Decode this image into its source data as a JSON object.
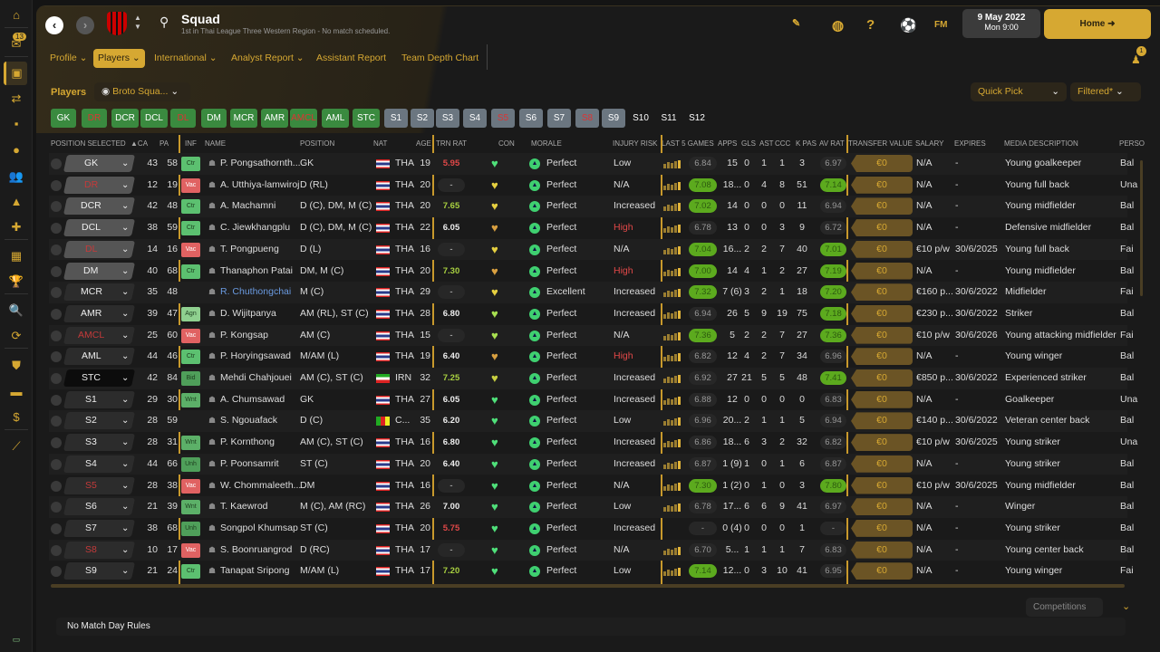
{
  "sidebar": {
    "inbox_count": "13",
    "bottom_icon": "keyboard"
  },
  "header": {
    "title": "Squad",
    "subtitle": "1st in Thai League Three Western Region - No match scheduled.",
    "date": "9 May 2022",
    "time": "Mon 9:00",
    "home": "Home",
    "fm": "FM",
    "notifications": "1"
  },
  "tabs": [
    "Profile",
    "Players",
    "International",
    "Analyst Report",
    "Assistant Report",
    "Team Depth Chart"
  ],
  "players_label": "Players",
  "view_select": "Broto Squa...",
  "quick_pick": "Quick Pick",
  "filtered": "Filtered*",
  "chips": [
    "GK",
    "DR",
    "DCR",
    "DCL",
    "DL",
    "DM",
    "MCR",
    "AMR",
    "AMCL",
    "AML",
    "STC",
    "S1",
    "S2",
    "S3",
    "S4",
    "S5",
    "S6",
    "S7",
    "S8",
    "S9",
    "S10",
    "S11",
    "S12"
  ],
  "columns": [
    "POSITION SELECTED",
    "▲CA",
    "PA",
    "INF",
    "NAME",
    "POSITION",
    "NAT",
    "AGE",
    "TRN RAT",
    "CON",
    "MORALE",
    "INJURY RISK",
    "LAST 5 GAMES",
    "APPS",
    "GLS",
    "AST",
    "CCC",
    "K PAS",
    "AV RAT",
    "TRANSFER VALUE",
    "SALARY",
    "EXPIRES",
    "MEDIA DESCRIPTION",
    "PERSO"
  ],
  "rows": [
    {
      "pos": "GK",
      "ca": "43",
      "pa": "58",
      "inf": "Ctr",
      "name": "P. Pongsathornth...",
      "position": "GK",
      "nat": "THA",
      "age": "19",
      "trn": "5.95",
      "con": "#4fe07a",
      "morale": "Perfect",
      "injury": "Low",
      "l5": "6.84",
      "apps": "15",
      "gls": "0",
      "ast": "1",
      "ccc": "1",
      "kpas": "3",
      "av": "6.97",
      "tv": "€0",
      "salary": "N/A",
      "expires": "-",
      "media": "Young goalkeeper",
      "person": "Bal"
    },
    {
      "pos": "DR",
      "ca": "12",
      "pa": "19",
      "inf": "Vac",
      "name": "A. Utthiya-lamwiroj",
      "position": "D (RL)",
      "nat": "THA",
      "age": "20",
      "trn": "-",
      "con": "#e6d040",
      "morale": "Perfect",
      "injury": "N/A",
      "l5": "7.08",
      "apps": "18...",
      "gls": "0",
      "ast": "4",
      "ccc": "8",
      "kpas": "51",
      "av": "7.14",
      "tv": "€0",
      "salary": "N/A",
      "expires": "-",
      "media": "Young full back",
      "person": "Una"
    },
    {
      "pos": "DCR",
      "ca": "42",
      "pa": "48",
      "inf": "Ctr",
      "name": "A. Machamni",
      "position": "D (C), DM, M (C)",
      "nat": "THA",
      "age": "20",
      "trn": "7.65",
      "con": "#e6d040",
      "morale": "Perfect",
      "injury": "Increased",
      "l5": "7.02",
      "apps": "14",
      "gls": "0",
      "ast": "0",
      "ccc": "0",
      "kpas": "11",
      "av": "6.94",
      "tv": "€0",
      "salary": "N/A",
      "expires": "-",
      "media": "Young midfielder",
      "person": "Bal"
    },
    {
      "pos": "DCL",
      "ca": "38",
      "pa": "59",
      "inf": "Ctr",
      "name": "C. Jiewkhangplu",
      "position": "D (C), DM, M (C)",
      "nat": "THA",
      "age": "22",
      "trn": "6.05",
      "con": "#d9a040",
      "morale": "Perfect",
      "injury": "High",
      "l5": "6.78",
      "apps": "13",
      "gls": "0",
      "ast": "0",
      "ccc": "3",
      "kpas": "9",
      "av": "6.72",
      "tv": "€0",
      "salary": "N/A",
      "expires": "-",
      "media": "Defensive midfielder",
      "person": "Bal"
    },
    {
      "pos": "DL",
      "ca": "14",
      "pa": "16",
      "inf": "Vac",
      "name": "T. Pongpueng",
      "position": "D (L)",
      "nat": "THA",
      "age": "16",
      "trn": "-",
      "con": "#e6d040",
      "morale": "Perfect",
      "injury": "N/A",
      "l5": "7.04",
      "apps": "16...",
      "gls": "2",
      "ast": "2",
      "ccc": "7",
      "kpas": "40",
      "av": "7.01",
      "tv": "€0",
      "salary": "€10 p/w",
      "expires": "30/6/2025",
      "media": "Young full back",
      "person": "Fai"
    },
    {
      "pos": "DM",
      "ca": "40",
      "pa": "68",
      "inf": "Ctr",
      "name": "Thanaphon Patai",
      "position": "DM, M (C)",
      "nat": "THA",
      "age": "20",
      "trn": "7.30",
      "con": "#d9a040",
      "morale": "Perfect",
      "injury": "High",
      "l5": "7.00",
      "apps": "14",
      "gls": "4",
      "ast": "1",
      "ccc": "2",
      "kpas": "27",
      "av": "7.19",
      "tv": "€0",
      "salary": "N/A",
      "expires": "-",
      "media": "Young midfielder",
      "person": "Bal"
    },
    {
      "pos": "MCR",
      "ca": "35",
      "pa": "48",
      "inf": "",
      "name": "R. Chuthongchai",
      "position": "M (C)",
      "nat": "THA",
      "age": "29",
      "trn": "-",
      "con": "#e6d040",
      "morale": "Excellent",
      "injury": "Increased",
      "l5": "7.32",
      "apps": "7 (6)",
      "gls": "3",
      "ast": "2",
      "ccc": "1",
      "kpas": "18",
      "av": "7.20",
      "tv": "€0",
      "salary": "€160 p...",
      "expires": "30/6/2022",
      "media": "Midfielder",
      "person": "Fai"
    },
    {
      "pos": "AMR",
      "ca": "39",
      "pa": "47",
      "inf": "Agn",
      "name": "D. Wijitpanya",
      "position": "AM (RL), ST (C)",
      "nat": "THA",
      "age": "28",
      "trn": "6.80",
      "con": "#a8e050",
      "morale": "Perfect",
      "injury": "Increased",
      "l5": "6.94",
      "apps": "26",
      "gls": "5",
      "ast": "9",
      "ccc": "19",
      "kpas": "75",
      "av": "7.18",
      "tv": "€0",
      "salary": "€230 p...",
      "expires": "30/6/2022",
      "media": "Striker",
      "person": "Bal"
    },
    {
      "pos": "AMCL",
      "ca": "25",
      "pa": "60",
      "inf": "Vac",
      "name": "P. Kongsap",
      "position": "AM (C)",
      "nat": "THA",
      "age": "15",
      "trn": "-",
      "con": "#a8e050",
      "morale": "Perfect",
      "injury": "N/A",
      "l5": "7.36",
      "apps": "5",
      "gls": "2",
      "ast": "2",
      "ccc": "7",
      "kpas": "27",
      "av": "7.36",
      "tv": "€0",
      "salary": "€10 p/w",
      "expires": "30/6/2026",
      "media": "Young attacking midfielder",
      "person": "Fai"
    },
    {
      "pos": "AML",
      "ca": "44",
      "pa": "46",
      "inf": "Ctr",
      "name": "P. Horyingsawad",
      "position": "M/AM (L)",
      "nat": "THA",
      "age": "19",
      "trn": "6.40",
      "con": "#d9a040",
      "morale": "Perfect",
      "injury": "High",
      "l5": "6.82",
      "apps": "12",
      "gls": "4",
      "ast": "2",
      "ccc": "7",
      "kpas": "34",
      "av": "6.96",
      "tv": "€0",
      "salary": "N/A",
      "expires": "-",
      "media": "Young winger",
      "person": "Bal"
    },
    {
      "pos": "STC",
      "ca": "42",
      "pa": "84",
      "inf": "Bid",
      "name": "Mehdi Chahjouei",
      "position": "AM (C), ST (C)",
      "nat": "IRN",
      "age": "32",
      "trn": "7.25",
      "con": "#c8d040",
      "morale": "Perfect",
      "injury": "Increased",
      "l5": "6.92",
      "apps": "27",
      "gls": "21",
      "ast": "5",
      "ccc": "5",
      "kpas": "48",
      "av": "7.41",
      "tv": "€0",
      "salary": "€850 p...",
      "expires": "30/6/2022",
      "media": "Experienced striker",
      "person": "Bal"
    },
    {
      "pos": "S1",
      "ca": "29",
      "pa": "30",
      "inf": "Wnt",
      "name": "A. Chumsawad",
      "position": "GK",
      "nat": "THA",
      "age": "27",
      "trn": "6.05",
      "con": "#4fe07a",
      "morale": "Perfect",
      "injury": "Increased",
      "l5": "6.88",
      "apps": "12",
      "gls": "0",
      "ast": "0",
      "ccc": "0",
      "kpas": "0",
      "av": "6.83",
      "tv": "€0",
      "salary": "N/A",
      "expires": "-",
      "media": "Goalkeeper",
      "person": "Una"
    },
    {
      "pos": "S2",
      "ca": "28",
      "pa": "59",
      "inf": "",
      "name": "S. Ngouafack",
      "position": "D (C)",
      "nat": "C...",
      "age": "35",
      "trn": "6.20",
      "con": "#4fe07a",
      "morale": "Perfect",
      "injury": "Low",
      "l5": "6.96",
      "apps": "20...",
      "gls": "2",
      "ast": "1",
      "ccc": "1",
      "kpas": "5",
      "av": "6.94",
      "tv": "€0",
      "salary": "€140 p...",
      "expires": "30/6/2022",
      "media": "Veteran center back",
      "person": "Bal"
    },
    {
      "pos": "S3",
      "ca": "28",
      "pa": "31",
      "inf": "Wnt",
      "name": "P. Kornthong",
      "position": "AM (C), ST (C)",
      "nat": "THA",
      "age": "16",
      "trn": "6.80",
      "con": "#4fe07a",
      "morale": "Perfect",
      "injury": "Increased",
      "l5": "6.86",
      "apps": "18...",
      "gls": "6",
      "ast": "3",
      "ccc": "2",
      "kpas": "32",
      "av": "6.82",
      "tv": "€0",
      "salary": "€10 p/w",
      "expires": "30/6/2025",
      "media": "Young striker",
      "person": "Una"
    },
    {
      "pos": "S4",
      "ca": "44",
      "pa": "66",
      "inf": "Unh",
      "name": "P. Poonsamrit",
      "position": "ST (C)",
      "nat": "THA",
      "age": "20",
      "trn": "6.40",
      "con": "#4fe07a",
      "morale": "Perfect",
      "injury": "Increased",
      "l5": "6.87",
      "apps": "1 (9)",
      "gls": "1",
      "ast": "0",
      "ccc": "1",
      "kpas": "6",
      "av": "6.87",
      "tv": "€0",
      "salary": "N/A",
      "expires": "-",
      "media": "Young striker",
      "person": "Bal"
    },
    {
      "pos": "S5",
      "ca": "28",
      "pa": "38",
      "inf": "Vac",
      "name": "W. Chommaleeth...",
      "position": "DM",
      "nat": "THA",
      "age": "16",
      "trn": "-",
      "con": "#4fe07a",
      "morale": "Perfect",
      "injury": "N/A",
      "l5": "7.30",
      "apps": "1 (2)",
      "gls": "0",
      "ast": "1",
      "ccc": "0",
      "kpas": "3",
      "av": "7.80",
      "tv": "€0",
      "salary": "€10 p/w",
      "expires": "30/6/2025",
      "media": "Young midfielder",
      "person": "Bal"
    },
    {
      "pos": "S6",
      "ca": "21",
      "pa": "39",
      "inf": "Wnt",
      "name": "T. Kaewrod",
      "position": "M (C), AM (RC)",
      "nat": "THA",
      "age": "26",
      "trn": "7.00",
      "con": "#4fe07a",
      "morale": "Perfect",
      "injury": "Low",
      "l5": "6.78",
      "apps": "17...",
      "gls": "6",
      "ast": "6",
      "ccc": "9",
      "kpas": "41",
      "av": "6.97",
      "tv": "€0",
      "salary": "N/A",
      "expires": "-",
      "media": "Winger",
      "person": "Bal"
    },
    {
      "pos": "S7",
      "ca": "38",
      "pa": "68",
      "inf": "Unh",
      "name": "Songpol Khumsap",
      "position": "ST (C)",
      "nat": "THA",
      "age": "20",
      "trn": "5.75",
      "con": "#4fe07a",
      "morale": "Perfect",
      "injury": "Increased",
      "l5": "-",
      "apps": "0 (4)",
      "gls": "0",
      "ast": "0",
      "ccc": "0",
      "kpas": "1",
      "av": "-",
      "tv": "€0",
      "salary": "N/A",
      "expires": "-",
      "media": "Young striker",
      "person": "Bal"
    },
    {
      "pos": "S8",
      "ca": "10",
      "pa": "17",
      "inf": "Vac",
      "name": "S. Boonruangrod",
      "position": "D (RC)",
      "nat": "THA",
      "age": "17",
      "trn": "-",
      "con": "#4fe07a",
      "morale": "Perfect",
      "injury": "N/A",
      "l5": "6.70",
      "apps": "5...",
      "gls": "1",
      "ast": "1",
      "ccc": "1",
      "kpas": "7",
      "av": "6.83",
      "tv": "€0",
      "salary": "N/A",
      "expires": "-",
      "media": "Young center back",
      "person": "Bal"
    },
    {
      "pos": "S9",
      "ca": "21",
      "pa": "24",
      "inf": "Ctr",
      "name": "Tanapat Sripong",
      "position": "M/AM (L)",
      "nat": "THA",
      "age": "17",
      "trn": "7.20",
      "con": "#4fe07a",
      "morale": "Perfect",
      "injury": "Low",
      "l5": "7.14",
      "apps": "12...",
      "gls": "0",
      "ast": "3",
      "ccc": "10",
      "kpas": "41",
      "av": "6.95",
      "tv": "€0",
      "salary": "N/A",
      "expires": "-",
      "media": "Young winger",
      "person": "Fai"
    }
  ],
  "footer": {
    "competitions": "Competitions",
    "match_day_rules": "No Match Day Rules"
  },
  "colors": {
    "accent": "#d6a832",
    "chip_green": "#3a8a3f",
    "chip_grey": "#6b7680",
    "red": "#e04848",
    "good": "#5caa1e"
  }
}
